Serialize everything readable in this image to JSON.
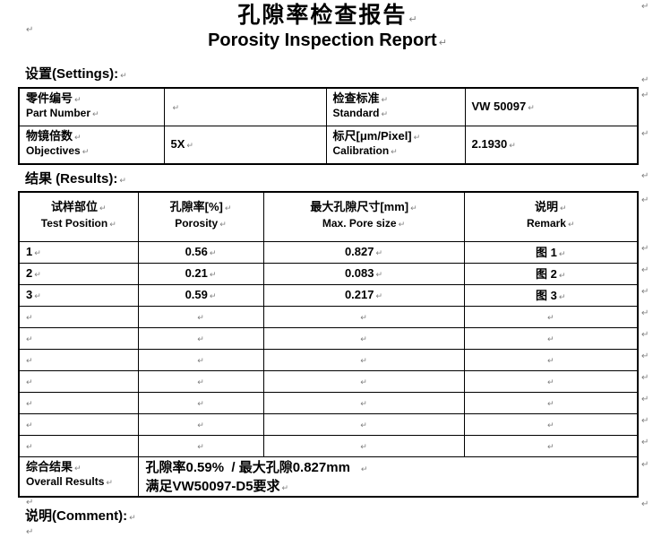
{
  "page": {
    "pilcrow": "↵"
  },
  "title": {
    "cn": "孔隙率检查报告",
    "en": "Porosity Inspection Report"
  },
  "settings": {
    "heading": "设置(Settings):",
    "row1": {
      "c1_cn": "零件编号",
      "c1_en": "Part Number",
      "v1": "",
      "c2_cn": "检查标准",
      "c2_en": "Standard",
      "v2": "VW 50097"
    },
    "row2": {
      "c1_cn": "物镜倍数",
      "c1_en": "Objectives",
      "v1": "5X",
      "c2_cn": "标尺[μm/Pixel]",
      "c2_en": "Calibration",
      "v2": "2.1930"
    }
  },
  "results": {
    "heading": "结果 (Results):",
    "headers": {
      "h1_cn": "试样部位",
      "h1_en": "Test Position",
      "h2_cn": "孔隙率[%]",
      "h2_en": "Porosity",
      "h3_cn": "最大孔隙尺寸[mm]",
      "h3_en": "Max. Pore size",
      "h4_cn": "说明",
      "h4_en": "Remark"
    },
    "rows": [
      {
        "position": "1",
        "porosity": "0.56",
        "max_pore": "0.827",
        "remark": "图 1"
      },
      {
        "position": "2",
        "porosity": "0.21",
        "max_pore": "0.083",
        "remark": "图 2"
      },
      {
        "position": "3",
        "porosity": "0.59",
        "max_pore": "0.217",
        "remark": "图 3"
      }
    ],
    "empty_row_count": 7,
    "overall": {
      "label_cn": "综合结果",
      "label_en": "Overall Results",
      "line1": "孔隙率0.59%  / 最大孔隙0.827mm",
      "line2": "满足VW50097-D5要求"
    }
  },
  "comment": {
    "heading": "说明(Comment):"
  }
}
